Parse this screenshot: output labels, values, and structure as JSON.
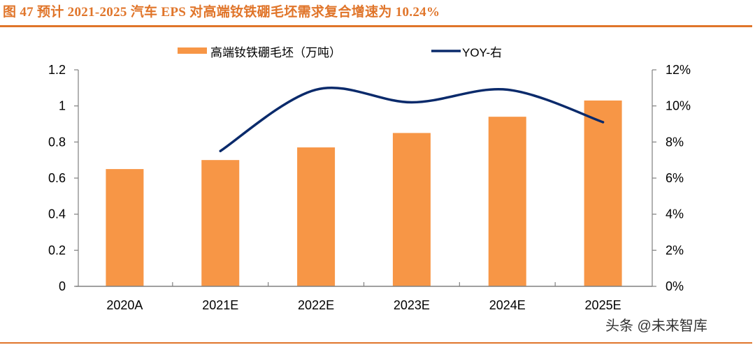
{
  "header": {
    "title": "图 47 预计 2021-2025 汽车 EPS 对高端钕铁硼毛坯需求复合增速为 10.24%"
  },
  "legend": {
    "bar_label": "高端钕铁硼毛坯（万吨）",
    "line_label": "YOY-右"
  },
  "colors": {
    "bar": "#F79646",
    "line": "#0A2A6B",
    "title": "#E0752A",
    "axis": "#808080"
  },
  "watermark": "头条 @未来智库",
  "chart_data": {
    "type": "bar+line",
    "title": "图 47 预计 2021-2025 汽车 EPS 对高端钕铁硼毛坯需求复合增速为 10.24%",
    "categories": [
      "2020A",
      "2021E",
      "2022E",
      "2023E",
      "2024E",
      "2025E"
    ],
    "series": [
      {
        "name": "高端钕铁硼毛坯（万吨）",
        "type": "bar",
        "axis": "left",
        "values": [
          0.65,
          0.7,
          0.77,
          0.85,
          0.94,
          1.03
        ]
      },
      {
        "name": "YOY-右",
        "type": "line",
        "axis": "right",
        "smooth": true,
        "values": [
          null,
          7.5,
          10.9,
          10.2,
          10.9,
          9.1
        ],
        "unit": "%"
      }
    ],
    "left_axis": {
      "ylim": [
        0,
        1.2
      ],
      "ticks": [
        "0",
        "0.2",
        "0.4",
        "0.6",
        "0.8",
        "1",
        "1.2"
      ]
    },
    "right_axis": {
      "ylim": [
        0,
        12
      ],
      "ticks": [
        "0%",
        "2%",
        "4%",
        "6%",
        "8%",
        "10%",
        "12%"
      ]
    },
    "xlabel": "",
    "ylabel": "",
    "grid": false,
    "legend_position": "top"
  }
}
